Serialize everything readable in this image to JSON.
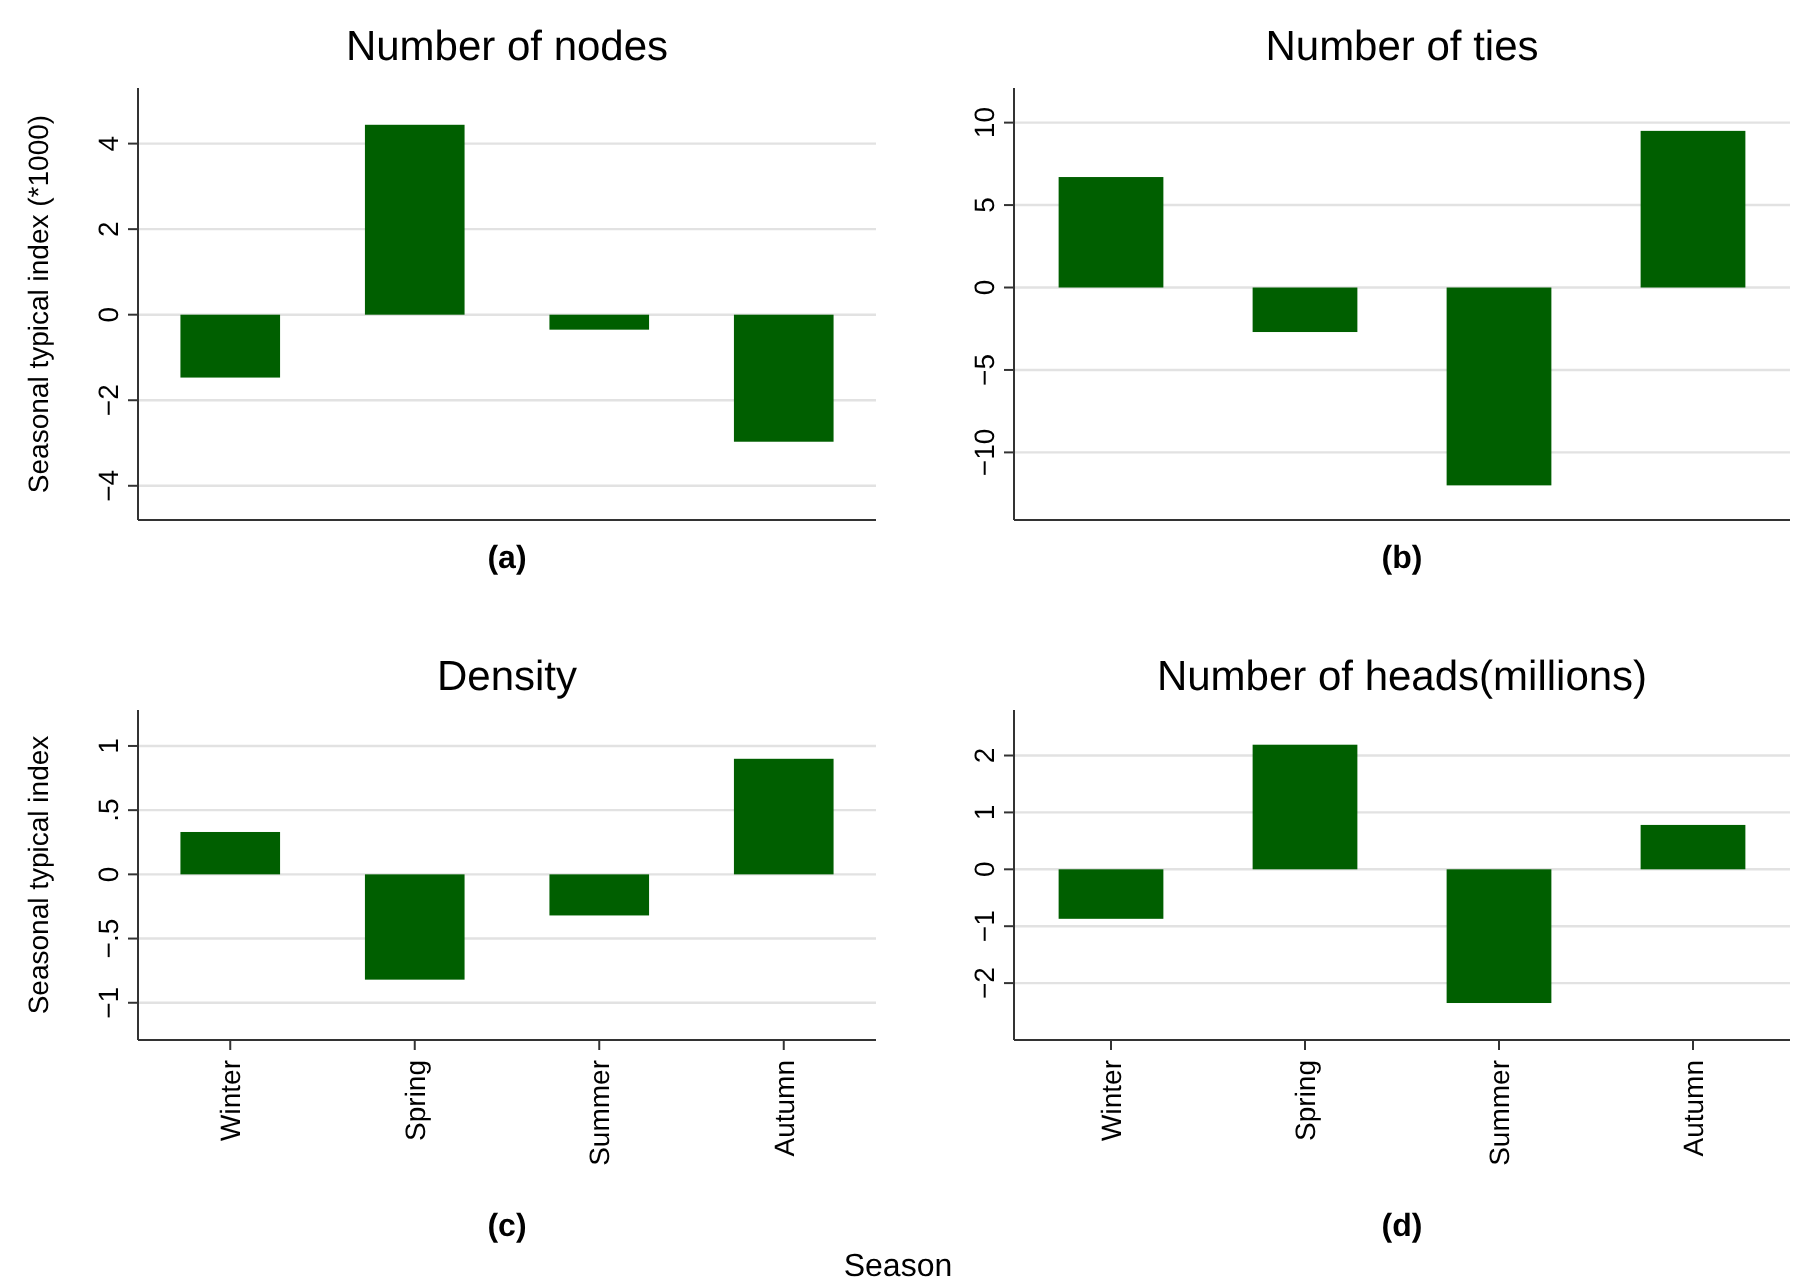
{
  "chart_data": [
    {
      "type": "bar",
      "title": "Number of nodes",
      "xlabel": "(a)",
      "ylabel": "Seasonal typical index (*1000)",
      "categories": [
        null,
        null,
        null,
        null
      ],
      "values": [
        -1.47,
        4.44,
        -0.35,
        -2.97
      ],
      "color": "#005f00",
      "ylim": [
        -4.8,
        5.3
      ],
      "yticks": [
        {
          "value": -4,
          "label": "−4"
        },
        {
          "value": -2,
          "label": "−2"
        },
        0,
        2,
        4
      ],
      "grid": "y"
    },
    {
      "type": "bar",
      "title": "Number of ties",
      "xlabel": "(b)",
      "categories": [
        null,
        null,
        null,
        null
      ],
      "values": [
        6.7,
        -2.7,
        -12,
        9.5
      ],
      "color": "#005f00",
      "ylim": [
        -14.1,
        12.1
      ],
      "yticks": [
        {
          "value": -10,
          "label": "−10"
        },
        {
          "value": -5,
          "label": "−5"
        },
        0,
        5,
        10
      ],
      "grid": "y"
    },
    {
      "type": "bar",
      "title": "Density",
      "xlabel": "(c)",
      "ylabel": "Seasonal typical index",
      "categories": [
        "Winter",
        "Spring",
        "Summer",
        "Autumn"
      ],
      "values": [
        0.33,
        -0.82,
        -0.32,
        0.9
      ],
      "color": "#005f00",
      "ylim": [
        -1.29,
        1.28
      ],
      "yticks": [
        {
          "value": -1,
          "label": "−1"
        },
        {
          "value": -0.5,
          "label": "−.5"
        },
        0,
        {
          "value": 0.5,
          "label": ".5"
        },
        1
      ],
      "grid": "y"
    },
    {
      "type": "bar",
      "title": "Number of heads(millions)",
      "xlabel": "(d)",
      "categories": [
        "Winter",
        "Spring",
        "Summer",
        "Autumn"
      ],
      "values": [
        -0.87,
        2.19,
        -2.35,
        0.78
      ],
      "color": "#005f00",
      "ylim": [
        -3.0,
        2.8
      ],
      "yticks": [
        {
          "value": -2,
          "label": "−2"
        },
        {
          "value": -1,
          "label": "−1"
        },
        0,
        1,
        2
      ],
      "grid": "y",
      "annotations": [
        "Season"
      ]
    }
  ]
}
